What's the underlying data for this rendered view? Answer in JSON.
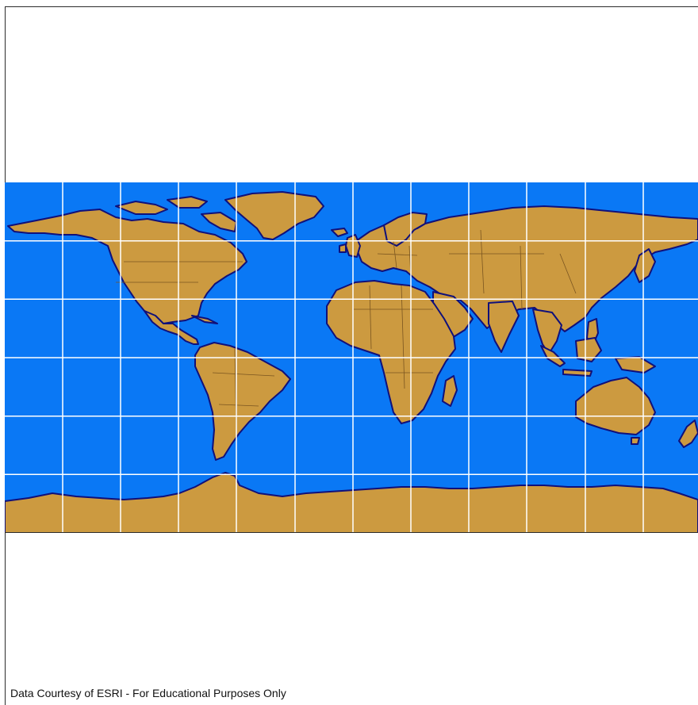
{
  "map": {
    "projection": "equirectangular (Plate Carrée)",
    "colors": {
      "ocean": "#0a78f5",
      "land": "#cc9a40",
      "coast": "#10107a",
      "borders": "#7a5520",
      "graticule": "#ffffff",
      "frame": "#2b2b2b"
    },
    "graticule_interval_degrees": 30,
    "graticule_lat_lines": [
      60,
      30,
      0,
      -30,
      -60
    ],
    "graticule_lon_lines": [
      -150,
      -120,
      -90,
      -60,
      -30,
      0,
      30,
      60,
      90,
      120,
      150
    ]
  },
  "footer": {
    "credit": "Data Courtesy of ESRI - For Educational Purposes Only"
  }
}
